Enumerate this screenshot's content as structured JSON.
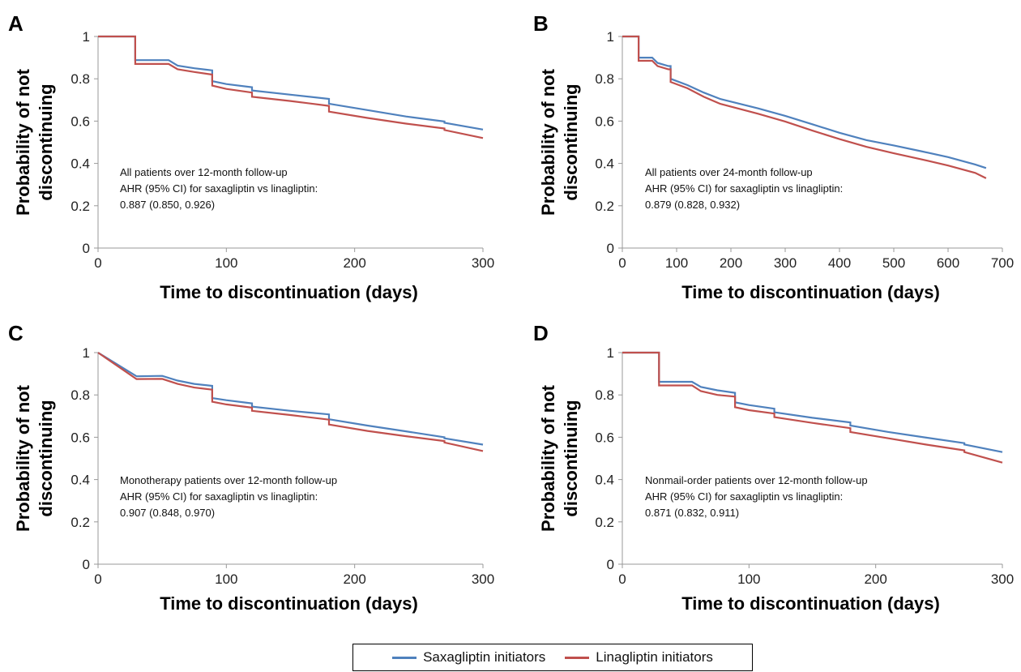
{
  "legend": {
    "series_a": "Saxagliptin initiators",
    "series_b": "Linagliptin initiators",
    "color_a": "#4f81bd",
    "color_b": "#c0504d"
  },
  "chart_data": [
    {
      "type": "line",
      "panel": "A",
      "xlabel": "Time to discontinuation (days)",
      "ylabel_lines": [
        "Probability of not",
        "discontinuing"
      ],
      "xlim": [
        0,
        300
      ],
      "ylim": [
        0,
        1
      ],
      "xticks": [
        0,
        100,
        200,
        300
      ],
      "yticks": [
        0,
        0.2,
        0.4,
        0.6,
        0.8,
        1
      ],
      "ytick_labels": [
        "0",
        "0.2",
        "0.4",
        "0.6",
        "0.8",
        "1"
      ],
      "annotation": [
        "All patients over 12-month follow-up",
        "AHR (95% CI) for saxagliptin vs linagliptin:",
        "0.887 (0.850, 0.926)"
      ],
      "series": [
        {
          "name": "Saxagliptin initiators",
          "color": "#4f81bd",
          "points": [
            [
              0,
              1
            ],
            [
              29,
              1
            ],
            [
              29,
              0.888
            ],
            [
              55,
              0.888
            ],
            [
              62,
              0.862
            ],
            [
              75,
              0.85
            ],
            [
              89,
              0.84
            ],
            [
              89,
              0.789
            ],
            [
              100,
              0.775
            ],
            [
              120,
              0.76
            ],
            [
              120,
              0.745
            ],
            [
              150,
              0.725
            ],
            [
              180,
              0.705
            ],
            [
              180,
              0.682
            ],
            [
              210,
              0.652
            ],
            [
              240,
              0.622
            ],
            [
              270,
              0.598
            ],
            [
              270,
              0.592
            ],
            [
              300,
              0.56
            ]
          ]
        },
        {
          "name": "Linagliptin initiators",
          "color": "#c0504d",
          "points": [
            [
              0,
              1
            ],
            [
              29,
              1
            ],
            [
              29,
              0.87
            ],
            [
              55,
              0.87
            ],
            [
              62,
              0.845
            ],
            [
              75,
              0.832
            ],
            [
              89,
              0.82
            ],
            [
              89,
              0.768
            ],
            [
              100,
              0.752
            ],
            [
              120,
              0.735
            ],
            [
              120,
              0.715
            ],
            [
              150,
              0.695
            ],
            [
              180,
              0.672
            ],
            [
              180,
              0.645
            ],
            [
              210,
              0.615
            ],
            [
              240,
              0.588
            ],
            [
              270,
              0.565
            ],
            [
              270,
              0.558
            ],
            [
              300,
              0.52
            ]
          ]
        }
      ]
    },
    {
      "type": "line",
      "panel": "B",
      "xlabel": "Time to discontinuation (days)",
      "ylabel_lines": [
        "Probability of not",
        "discontinuing"
      ],
      "xlim": [
        0,
        700
      ],
      "ylim": [
        0,
        1
      ],
      "xticks": [
        0,
        100,
        200,
        300,
        400,
        500,
        600,
        700
      ],
      "yticks": [
        0,
        0.2,
        0.4,
        0.6,
        0.8,
        1
      ],
      "ytick_labels": [
        "0",
        "0.2",
        "0.4",
        "0.6",
        "0.8",
        "1"
      ],
      "annotation": [
        "All patients over 24-month follow-up",
        "AHR (95% CI) for saxagliptin vs linagliptin:",
        "0.879 (0.828, 0.932)"
      ],
      "series": [
        {
          "name": "Saxagliptin initiators",
          "color": "#4f81bd",
          "points": [
            [
              0,
              1
            ],
            [
              30,
              1
            ],
            [
              30,
              0.9
            ],
            [
              55,
              0.9
            ],
            [
              65,
              0.875
            ],
            [
              85,
              0.86
            ],
            [
              89,
              0.86
            ],
            [
              89,
              0.8
            ],
            [
              120,
              0.77
            ],
            [
              150,
              0.735
            ],
            [
              180,
              0.705
            ],
            [
              250,
              0.66
            ],
            [
              300,
              0.625
            ],
            [
              350,
              0.585
            ],
            [
              400,
              0.545
            ],
            [
              450,
              0.51
            ],
            [
              500,
              0.485
            ],
            [
              550,
              0.458
            ],
            [
              600,
              0.43
            ],
            [
              650,
              0.395
            ],
            [
              670,
              0.378
            ]
          ]
        },
        {
          "name": "Linagliptin initiators",
          "color": "#c0504d",
          "points": [
            [
              0,
              1
            ],
            [
              30,
              1
            ],
            [
              30,
              0.885
            ],
            [
              55,
              0.885
            ],
            [
              65,
              0.86
            ],
            [
              85,
              0.845
            ],
            [
              89,
              0.845
            ],
            [
              89,
              0.785
            ],
            [
              120,
              0.755
            ],
            [
              150,
              0.715
            ],
            [
              180,
              0.682
            ],
            [
              250,
              0.635
            ],
            [
              300,
              0.598
            ],
            [
              350,
              0.555
            ],
            [
              400,
              0.515
            ],
            [
              450,
              0.478
            ],
            [
              500,
              0.448
            ],
            [
              550,
              0.42
            ],
            [
              600,
              0.39
            ],
            [
              650,
              0.355
            ],
            [
              670,
              0.33
            ]
          ]
        }
      ]
    },
    {
      "type": "line",
      "panel": "C",
      "xlabel": "Time to discontinuation (days)",
      "ylabel_lines": [
        "Probability of not",
        "discontinuing"
      ],
      "xlim": [
        0,
        300
      ],
      "ylim": [
        0,
        1
      ],
      "xticks": [
        0,
        100,
        200,
        300
      ],
      "yticks": [
        0,
        0.2,
        0.4,
        0.6,
        0.8,
        1
      ],
      "ytick_labels": [
        "0",
        "0.2",
        "0.4",
        "0.6",
        "0.8",
        "1"
      ],
      "annotation": [
        "Monotherapy patients over 12-month follow-up",
        "AHR (95% CI) for saxagliptin vs linagliptin:",
        "0.907 (0.848, 0.970)"
      ],
      "series": [
        {
          "name": "Saxagliptin initiators",
          "color": "#4f81bd",
          "points": [
            [
              0,
              1
            ],
            [
              30,
              0.888
            ],
            [
              50,
              0.89
            ],
            [
              62,
              0.868
            ],
            [
              75,
              0.852
            ],
            [
              89,
              0.843
            ],
            [
              89,
              0.785
            ],
            [
              100,
              0.775
            ],
            [
              120,
              0.76
            ],
            [
              120,
              0.745
            ],
            [
              150,
              0.725
            ],
            [
              180,
              0.708
            ],
            [
              180,
              0.685
            ],
            [
              210,
              0.655
            ],
            [
              240,
              0.628
            ],
            [
              270,
              0.6
            ],
            [
              270,
              0.595
            ],
            [
              300,
              0.565
            ]
          ]
        },
        {
          "name": "Linagliptin initiators",
          "color": "#c0504d",
          "points": [
            [
              0,
              1
            ],
            [
              30,
              0.875
            ],
            [
              50,
              0.876
            ],
            [
              62,
              0.852
            ],
            [
              75,
              0.835
            ],
            [
              89,
              0.825
            ],
            [
              89,
              0.768
            ],
            [
              100,
              0.755
            ],
            [
              120,
              0.74
            ],
            [
              120,
              0.725
            ],
            [
              150,
              0.705
            ],
            [
              180,
              0.683
            ],
            [
              180,
              0.66
            ],
            [
              210,
              0.63
            ],
            [
              240,
              0.605
            ],
            [
              270,
              0.582
            ],
            [
              270,
              0.575
            ],
            [
              300,
              0.535
            ]
          ]
        }
      ]
    },
    {
      "type": "line",
      "panel": "D",
      "xlabel": "Time to discontinuation (days)",
      "ylabel_lines": [
        "Probability of not",
        "discontinuing"
      ],
      "xlim": [
        0,
        300
      ],
      "ylim": [
        0,
        1
      ],
      "xticks": [
        0,
        100,
        200,
        300
      ],
      "yticks": [
        0,
        0.2,
        0.4,
        0.6,
        0.8,
        1
      ],
      "ytick_labels": [
        "0",
        "0.2",
        "0.4",
        "0.6",
        "0.8",
        "1"
      ],
      "annotation": [
        "Nonmail-order patients over 12-month follow-up",
        "AHR (95% CI) for saxagliptin vs linagliptin:",
        "0.871 (0.832, 0.911)"
      ],
      "series": [
        {
          "name": "Saxagliptin initiators",
          "color": "#4f81bd",
          "points": [
            [
              0,
              1
            ],
            [
              29,
              1
            ],
            [
              29,
              0.862
            ],
            [
              55,
              0.862
            ],
            [
              62,
              0.838
            ],
            [
              75,
              0.822
            ],
            [
              89,
              0.81
            ],
            [
              89,
              0.765
            ],
            [
              100,
              0.752
            ],
            [
              120,
              0.735
            ],
            [
              120,
              0.718
            ],
            [
              150,
              0.692
            ],
            [
              180,
              0.67
            ],
            [
              180,
              0.655
            ],
            [
              210,
              0.625
            ],
            [
              240,
              0.598
            ],
            [
              270,
              0.572
            ],
            [
              270,
              0.566
            ],
            [
              300,
              0.53
            ]
          ]
        },
        {
          "name": "Linagliptin initiators",
          "color": "#c0504d",
          "points": [
            [
              0,
              1
            ],
            [
              29,
              1
            ],
            [
              29,
              0.845
            ],
            [
              55,
              0.845
            ],
            [
              62,
              0.818
            ],
            [
              75,
              0.8
            ],
            [
              89,
              0.792
            ],
            [
              89,
              0.742
            ],
            [
              100,
              0.728
            ],
            [
              120,
              0.712
            ],
            [
              120,
              0.695
            ],
            [
              150,
              0.668
            ],
            [
              180,
              0.643
            ],
            [
              180,
              0.625
            ],
            [
              210,
              0.595
            ],
            [
              240,
              0.565
            ],
            [
              270,
              0.538
            ],
            [
              270,
              0.53
            ],
            [
              300,
              0.48
            ]
          ]
        }
      ]
    }
  ]
}
